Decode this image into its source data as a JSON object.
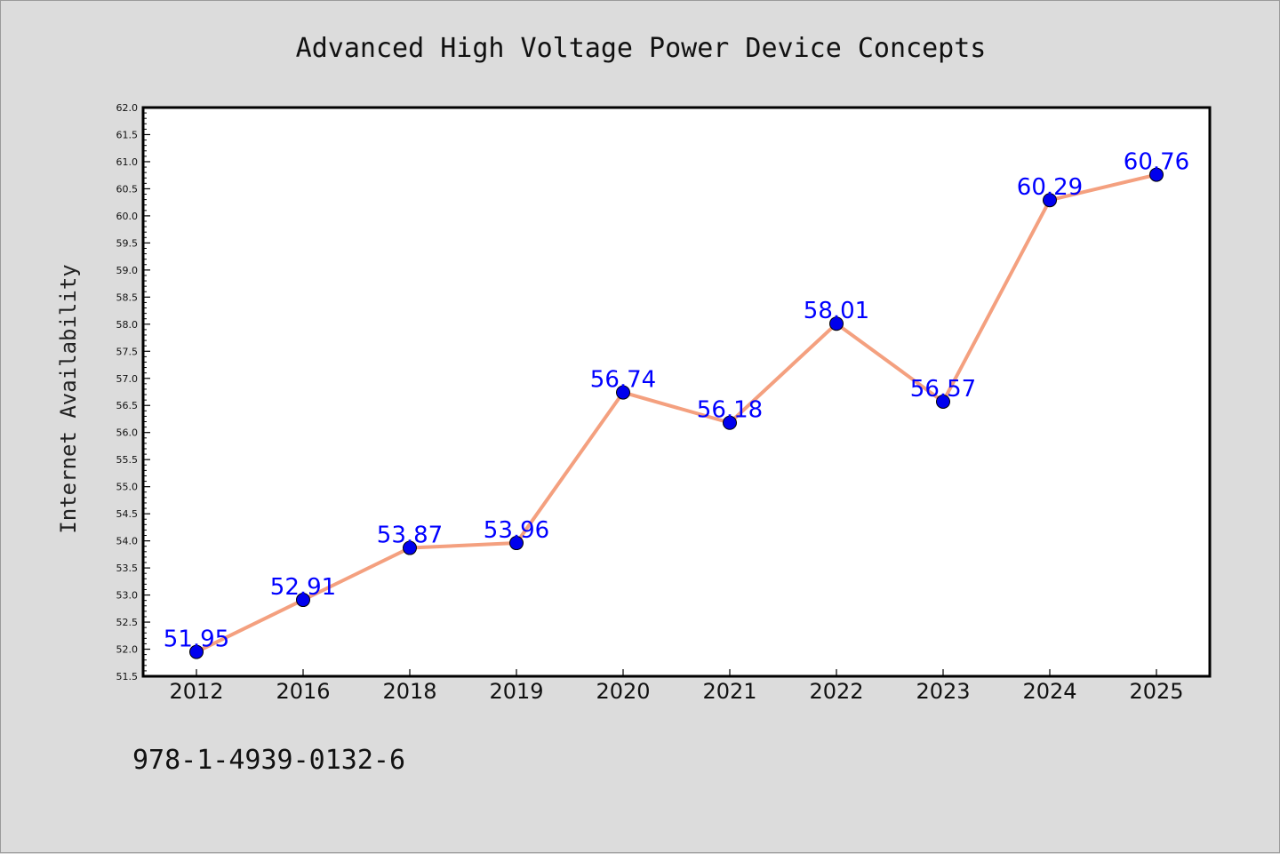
{
  "chart_data": {
    "type": "line",
    "title": "Advanced High Voltage Power Device Concepts",
    "xlabel": "",
    "ylabel": "Internet Availability",
    "categories": [
      "2012",
      "2016",
      "2018",
      "2019",
      "2020",
      "2021",
      "2022",
      "2023",
      "2024",
      "2025"
    ],
    "values": [
      51.95,
      52.91,
      53.87,
      53.96,
      56.74,
      56.18,
      58.01,
      56.57,
      60.29,
      60.76
    ],
    "data_labels": [
      "51.95",
      "52.91",
      "53.87",
      "53.96",
      "56.74",
      "56.18",
      "58.01",
      "56.57",
      "60.29",
      "60.76"
    ],
    "ylim": [
      51.5,
      62.0
    ],
    "yticks": [
      "51.5",
      "52.0",
      "52.5",
      "53.0",
      "53.5",
      "54.0",
      "54.5",
      "55.0",
      "55.5",
      "56.0",
      "56.5",
      "57.0",
      "57.5",
      "58.0",
      "58.5",
      "59.0",
      "59.5",
      "60.0",
      "60.5",
      "61.0",
      "61.5",
      "62.0"
    ],
    "grid": false,
    "legend": "none",
    "line_color": "#f4a07f",
    "marker_color": "#0000ee",
    "label_color": "#0000ff"
  },
  "footer": {
    "isbn": "978-1-4939-0132-6"
  }
}
